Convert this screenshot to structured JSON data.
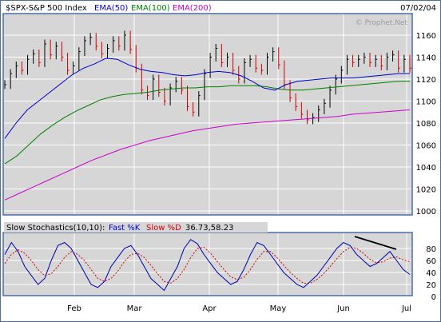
{
  "header": {
    "symbol": "$SPX-S&P 500 Index",
    "date": "07/02/04",
    "watermark": "© Prophet.Net",
    "ema_labels": [
      {
        "text": "EMA(50)",
        "color": "#0000cc"
      },
      {
        "text": "EMA(100)",
        "color": "#008000"
      },
      {
        "text": "EMA(200)",
        "color": "#cc00cc"
      }
    ]
  },
  "stoch_header": {
    "title": "Slow Stochastics(10,10):",
    "fast_label": "Fast %K",
    "fast_color": "#0000cc",
    "slow_label": "Slow %D",
    "slow_color": "#cc0000",
    "values": "36.73,58.23"
  },
  "months": [
    "Feb",
    "Mar",
    "Apr",
    "May",
    "Jun",
    "Jul"
  ],
  "price_ticks": [
    "1160",
    "1140",
    "1120",
    "1100",
    "1080",
    "1060",
    "1040",
    "1020",
    "1000"
  ],
  "stoch_ticks": [
    "80",
    "60",
    "40",
    "20",
    "0"
  ],
  "colors": {
    "background": "#d6d6d6",
    "border": "#4a6fa5",
    "bar_up": "#000000",
    "bar_down": "#cc0000"
  },
  "chart_data": [
    {
      "type": "line",
      "title": "$SPX-S&P 500 Index",
      "ylim": [
        1000,
        1170
      ],
      "x_range": [
        "2004-01-05",
        "2004-07-02"
      ],
      "series": [
        {
          "name": "Price (high-low bars)",
          "values": [
            1115,
            1125,
            1132,
            1128,
            1138,
            1143,
            1135,
            1152,
            1142,
            1150,
            1140,
            1128,
            1132,
            1145,
            1155,
            1158,
            1150,
            1143,
            1148,
            1155,
            1150,
            1160,
            1147,
            1130,
            1110,
            1105,
            1120,
            1108,
            1100,
            1112,
            1118,
            1110,
            1095,
            1090,
            1105,
            1125,
            1140,
            1148,
            1135,
            1140,
            1128,
            1120,
            1135,
            1138,
            1130,
            1128,
            1140,
            1145,
            1133,
            1115,
            1103,
            1095,
            1088,
            1083,
            1085,
            1092,
            1098,
            1110,
            1120,
            1128,
            1138,
            1135,
            1138,
            1140,
            1135,
            1138,
            1132,
            1140,
            1142,
            1130,
            1138,
            1130
          ]
        },
        {
          "name": "EMA(50)",
          "values": [
            1066,
            1080,
            1092,
            1100,
            1108,
            1116,
            1124,
            1130,
            1134,
            1139,
            1138,
            1133,
            1129,
            1127,
            1126,
            1124,
            1123,
            1124,
            1126,
            1127,
            1126,
            1123,
            1118,
            1112,
            1110,
            1115,
            1118,
            1119,
            1120,
            1121,
            1121,
            1121,
            1122,
            1123,
            1124,
            1125,
            1125
          ]
        },
        {
          "name": "EMA(100)",
          "values": [
            1043,
            1050,
            1060,
            1070,
            1078,
            1085,
            1091,
            1096,
            1101,
            1104,
            1106,
            1107,
            1108,
            1110,
            1111,
            1112,
            1112,
            1113,
            1113,
            1114,
            1114,
            1114,
            1113,
            1111,
            1110,
            1110,
            1111,
            1112,
            1113,
            1114,
            1115,
            1116,
            1117,
            1118,
            1118
          ]
        },
        {
          "name": "EMA(200)",
          "values": [
            1010,
            1016,
            1022,
            1028,
            1034,
            1040,
            1046,
            1051,
            1056,
            1060,
            1064,
            1067,
            1070,
            1073,
            1075,
            1077,
            1079,
            1080,
            1081,
            1082,
            1083,
            1084,
            1085,
            1086,
            1088,
            1089,
            1090,
            1091,
            1092
          ]
        }
      ]
    },
    {
      "type": "line",
      "title": "Slow Stochastics(10,10)",
      "ylim": [
        0,
        100
      ],
      "series": [
        {
          "name": "Fast %K",
          "values": [
            70,
            90,
            75,
            50,
            35,
            20,
            30,
            60,
            85,
            90,
            80,
            60,
            40,
            20,
            15,
            25,
            50,
            65,
            80,
            85,
            70,
            50,
            30,
            20,
            10,
            30,
            50,
            80,
            95,
            88,
            70,
            55,
            40,
            30,
            20,
            25,
            45,
            70,
            90,
            85,
            70,
            55,
            40,
            30,
            20,
            15,
            25,
            35,
            50,
            65,
            80,
            90,
            85,
            70,
            60,
            50,
            55,
            65,
            75,
            60,
            45,
            36.73
          ]
        },
        {
          "name": "Slow %D",
          "values": [
            55,
            70,
            78,
            72,
            60,
            45,
            35,
            38,
            50,
            65,
            75,
            70,
            60,
            45,
            30,
            25,
            30,
            42,
            58,
            70,
            72,
            65,
            52,
            38,
            25,
            22,
            30,
            45,
            65,
            80,
            82,
            72,
            58,
            45,
            33,
            28,
            32,
            45,
            62,
            75,
            75,
            65,
            52,
            40,
            30,
            22,
            22,
            28,
            38,
            50,
            63,
            75,
            82,
            80,
            72,
            62,
            56,
            58,
            64,
            66,
            61,
            58.23
          ]
        }
      ],
      "annotations": [
        "trendline on Fast %K peaks, June to early July"
      ]
    }
  ]
}
